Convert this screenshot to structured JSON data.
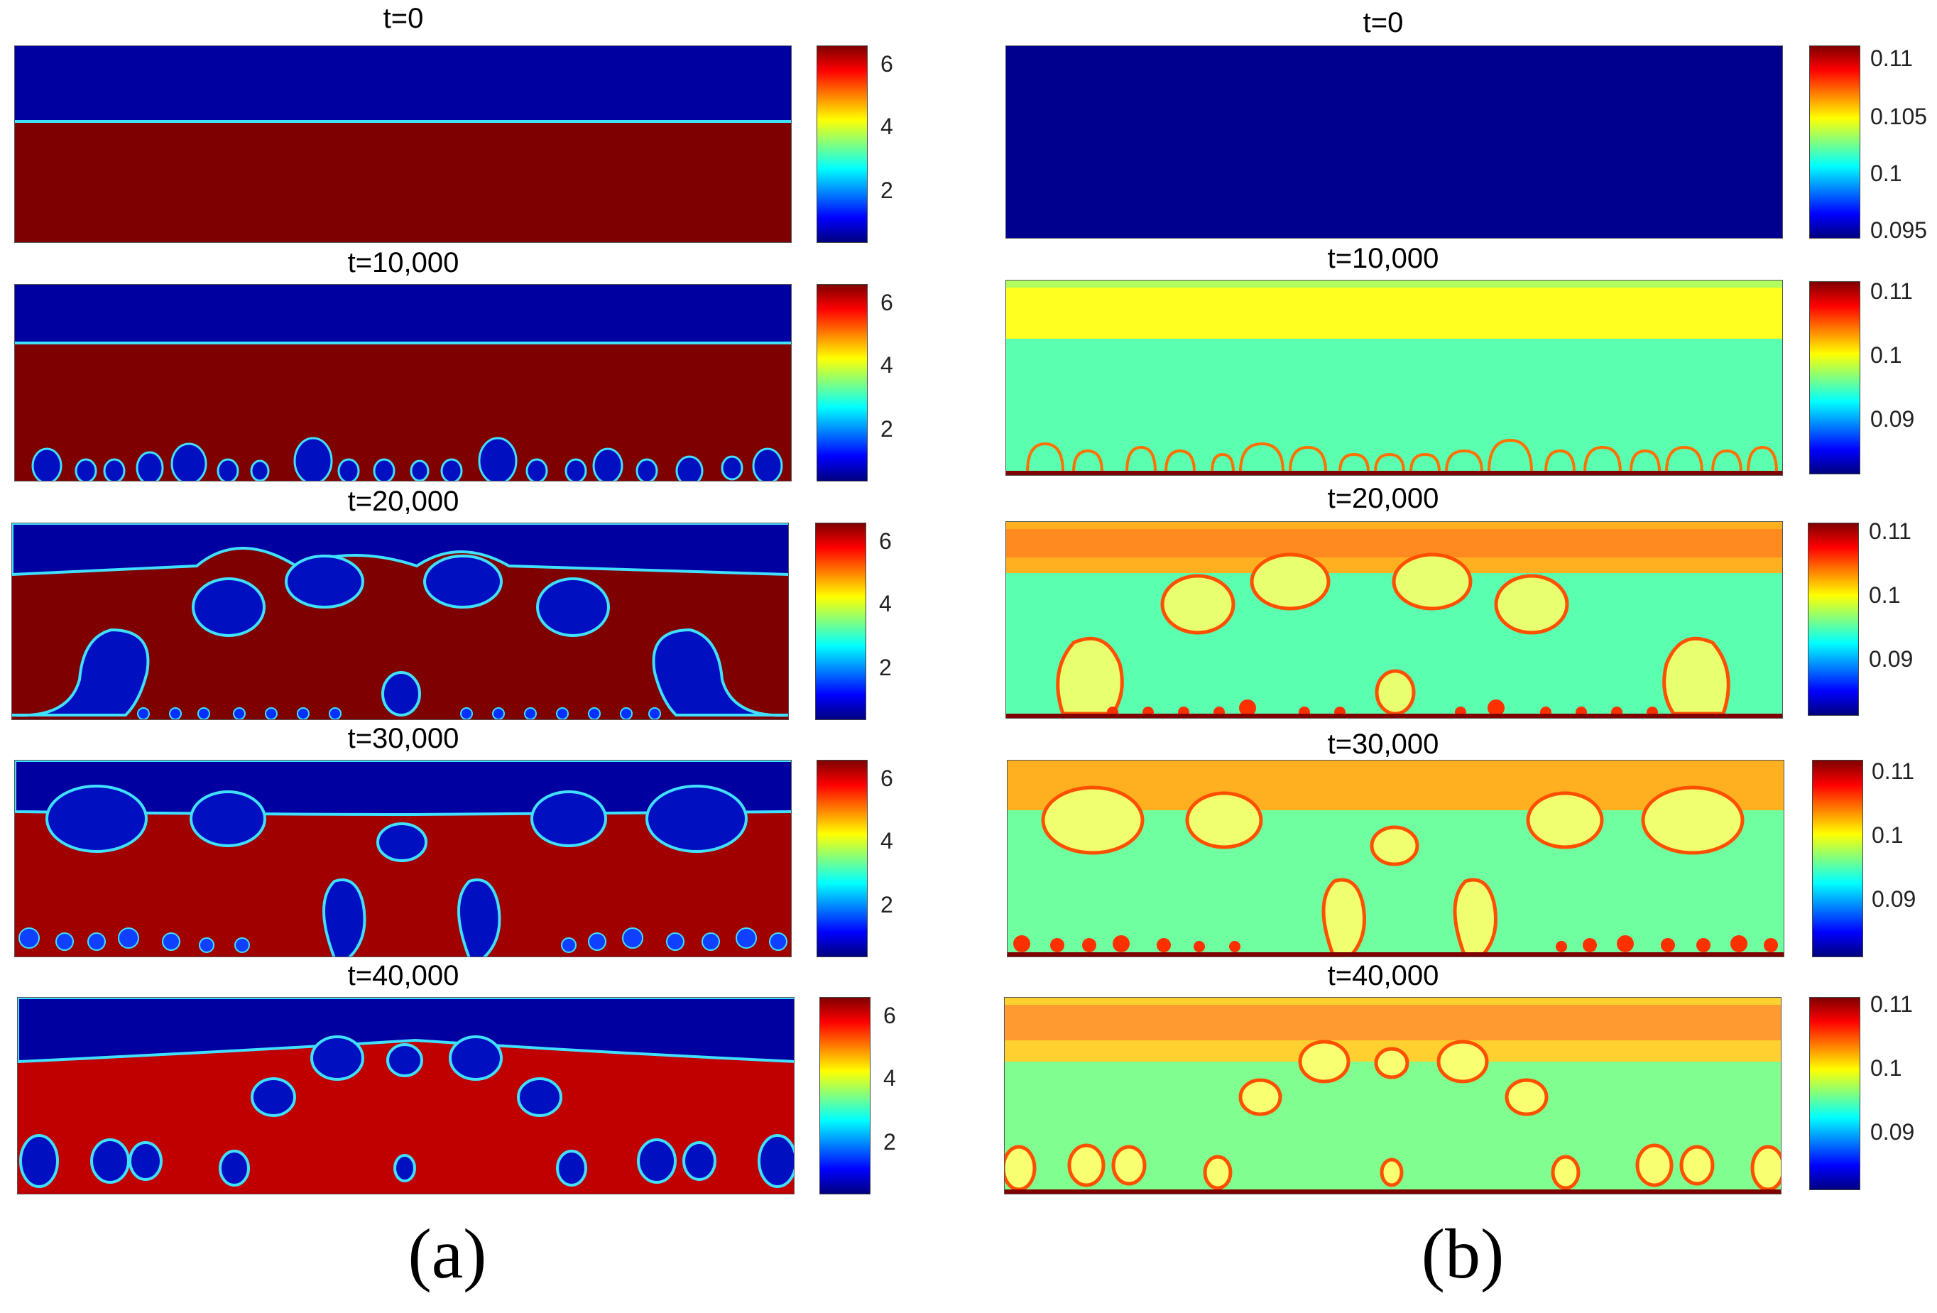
{
  "figure": {
    "panel_a": {
      "label": "(a)",
      "colorbar_ticks": [
        "6",
        "4",
        "2"
      ],
      "snapshots": [
        "t=0",
        "t=10,000",
        "t=20,000",
        "t=30,000",
        "t=40,000"
      ]
    },
    "panel_b": {
      "label": "(b)",
      "snapshots": [
        "t=0",
        "t=10,000",
        "t=20,000",
        "t=30,000",
        "t=40,000"
      ],
      "colorbar_ticks": [
        [
          "0.11",
          "0.105",
          "0.1",
          "0.095"
        ],
        [
          "0.11",
          "0.1",
          "0.09"
        ],
        [
          "0.11",
          "0.1",
          "0.09"
        ],
        [
          "0.11",
          "0.1",
          "0.09"
        ],
        [
          "0.11",
          "0.1",
          "0.09"
        ]
      ]
    }
  },
  "colors": {
    "dark_red": "#7f0000",
    "blue": "#0000a0",
    "cyan_green": "#5affb0",
    "yellow": "#ffff00",
    "orange": "#ff7000"
  }
}
